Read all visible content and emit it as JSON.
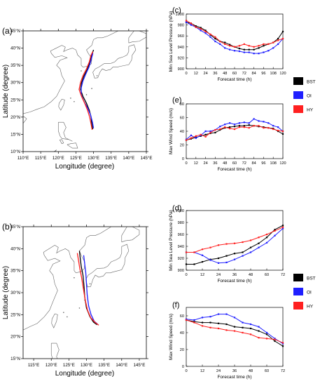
{
  "legend": {
    "items": [
      {
        "label": "BST",
        "color": "#000000"
      },
      {
        "label": "OI",
        "color": "#1f1fff"
      },
      {
        "label": "HY",
        "color": "#ff2020"
      }
    ]
  },
  "maps": [
    {
      "panel_label": "(a)",
      "xlabel": "Longitude (degree)",
      "ylabel": "Latitude (degree)",
      "x_ticks": [
        "110°E",
        "115°E",
        "120°E",
        "125°E",
        "130°E",
        "135°E",
        "140°E",
        "145°E"
      ],
      "y_ticks": [
        "10°N",
        "15°N",
        "20°N",
        "25°N",
        "30°N",
        "35°N",
        "40°N",
        "45°N"
      ],
      "xlim": [
        110,
        145
      ],
      "ylim": [
        10,
        45
      ],
      "tracks": {
        "BST": [
          [
            129.8,
            16.5
          ],
          [
            129.5,
            18
          ],
          [
            129.3,
            20
          ],
          [
            128.8,
            22
          ],
          [
            128.0,
            24
          ],
          [
            127.0,
            26
          ],
          [
            126.3,
            28
          ],
          [
            126.6,
            30
          ],
          [
            127.3,
            32
          ],
          [
            128.3,
            34
          ],
          [
            129.0,
            36
          ],
          [
            129.5,
            38
          ],
          [
            130.0,
            39.5
          ]
        ],
        "OI": [
          [
            130.0,
            16.8
          ],
          [
            129.7,
            18.5
          ],
          [
            129.2,
            20.5
          ],
          [
            128.4,
            22.5
          ],
          [
            127.3,
            24.5
          ],
          [
            126.5,
            26.5
          ],
          [
            126.5,
            28.5
          ],
          [
            127.0,
            30.5
          ],
          [
            127.8,
            32.5
          ],
          [
            128.7,
            34.5
          ],
          [
            129.3,
            36.5
          ],
          [
            129.8,
            38.5
          ]
        ],
        "HY": [
          [
            129.6,
            16.3
          ],
          [
            129.3,
            18
          ],
          [
            128.9,
            20
          ],
          [
            128.3,
            22
          ],
          [
            127.5,
            24
          ],
          [
            126.6,
            26
          ],
          [
            125.9,
            28
          ],
          [
            126.3,
            30
          ],
          [
            127.0,
            32
          ],
          [
            128.0,
            34
          ],
          [
            128.8,
            36
          ],
          [
            129.3,
            38
          ],
          [
            129.8,
            39
          ]
        ]
      }
    },
    {
      "panel_label": "(b)",
      "xlabel": "Longitude (degree)",
      "ylabel": "Latitude (degree)",
      "x_ticks": [
        "115°E",
        "120°E",
        "125°E",
        "130°E",
        "135°E",
        "140°E",
        "145°E"
      ],
      "y_ticks": [
        "15°N",
        "20°N",
        "25°N",
        "30°N",
        "35°N",
        "40°N",
        "45°N"
      ],
      "xlim": [
        112,
        147
      ],
      "ylim": [
        15,
        45
      ],
      "tracks": {
        "BST": [
          [
            133.0,
            22.7
          ],
          [
            132.0,
            23.3
          ],
          [
            131.0,
            24.5
          ],
          [
            130.0,
            26.5
          ],
          [
            129.5,
            29
          ],
          [
            129.3,
            31.5
          ],
          [
            129.0,
            34
          ],
          [
            128.5,
            36
          ],
          [
            128.2,
            38
          ],
          [
            128.0,
            39.5
          ]
        ],
        "OI": [
          [
            133.2,
            22.8
          ],
          [
            132.2,
            23.5
          ],
          [
            131.3,
            25
          ],
          [
            130.6,
            27
          ],
          [
            130.2,
            29.5
          ],
          [
            130.0,
            32
          ],
          [
            129.8,
            34.5
          ],
          [
            129.5,
            36.5
          ],
          [
            129.2,
            38.5
          ]
        ],
        "HY": [
          [
            133.5,
            22.6
          ],
          [
            132.5,
            23.2
          ],
          [
            131.2,
            24.3
          ],
          [
            130.3,
            26
          ],
          [
            129.6,
            28.5
          ],
          [
            129.1,
            31
          ],
          [
            128.6,
            33.5
          ],
          [
            128.1,
            35.5
          ],
          [
            127.7,
            37.5
          ],
          [
            127.4,
            39
          ]
        ]
      }
    }
  ],
  "chart_data": [
    {
      "type": "line",
      "panel_label": "(c)",
      "xlabel": "Forecast time (h)",
      "ylabel": "Min Sea Level Pressure (hPa)",
      "x": [
        0,
        6,
        12,
        18,
        24,
        30,
        36,
        42,
        48,
        54,
        60,
        66,
        72,
        78,
        84,
        90,
        96,
        102,
        108,
        114,
        120
      ],
      "x_ticks": [
        0,
        12,
        24,
        36,
        48,
        60,
        72,
        84,
        96,
        108,
        120
      ],
      "y_ticks": [
        900,
        920,
        940,
        960,
        980,
        1000
      ],
      "xlim": [
        0,
        120
      ],
      "ylim": [
        900,
        1000
      ],
      "series": [
        {
          "name": "BST",
          "values": [
            985,
            983,
            978,
            975,
            970,
            962,
            955,
            950,
            948,
            944,
            940,
            937,
            935,
            935,
            935,
            938,
            942,
            945,
            948,
            955,
            968
          ]
        },
        {
          "name": "OI",
          "values": [
            985,
            980,
            976,
            970,
            965,
            958,
            950,
            945,
            938,
            935,
            933,
            932,
            930,
            930,
            928,
            928,
            930,
            933,
            938,
            945,
            955
          ]
        },
        {
          "name": "HY",
          "values": [
            988,
            983,
            976,
            973,
            968,
            963,
            958,
            950,
            945,
            942,
            940,
            942,
            945,
            942,
            940,
            942,
            945,
            945,
            948,
            952,
            955
          ]
        }
      ]
    },
    {
      "type": "line",
      "panel_label": "(e)",
      "xlabel": "Forecast time (h)",
      "ylabel": "Max Wind Speed (m/s)",
      "x": [
        0,
        6,
        12,
        18,
        24,
        30,
        36,
        42,
        48,
        54,
        60,
        66,
        72,
        78,
        84,
        90,
        96,
        102,
        108,
        114,
        120
      ],
      "x_ticks": [
        0,
        12,
        24,
        36,
        48,
        60,
        72,
        84,
        96,
        108,
        120
      ],
      "y_ticks": [
        0,
        20,
        40,
        60,
        80
      ],
      "xlim": [
        0,
        120
      ],
      "ylim": [
        0,
        80
      ],
      "series": [
        {
          "name": "BST",
          "values": [
            27,
            29,
            31,
            33,
            35,
            37,
            38,
            42,
            45,
            46,
            47,
            48,
            48,
            49,
            48,
            47,
            46,
            45,
            44,
            40,
            36
          ]
        },
        {
          "name": "OI",
          "values": [
            28,
            34,
            30,
            34,
            40,
            40,
            42,
            47,
            50,
            52,
            50,
            52,
            53,
            52,
            58,
            55,
            54,
            52,
            48,
            46,
            40
          ]
        },
        {
          "name": "HY",
          "values": [
            27,
            30,
            33,
            35,
            32,
            38,
            42,
            43,
            46,
            44,
            43,
            46,
            46,
            45,
            48,
            48,
            45,
            45,
            43,
            41,
            40
          ]
        }
      ]
    },
    {
      "type": "line",
      "panel_label": "(d)",
      "xlabel": "Forecast time (h)",
      "ylabel": "Min Sea Level Pressure (hPa)",
      "x": [
        0,
        6,
        12,
        18,
        24,
        30,
        36,
        42,
        48,
        54,
        60,
        66,
        72
      ],
      "x_ticks": [
        0,
        12,
        24,
        36,
        48,
        60,
        72
      ],
      "y_ticks": [
        900,
        920,
        940,
        960,
        980,
        1000
      ],
      "xlim": [
        0,
        72
      ],
      "ylim": [
        900,
        1000
      ],
      "series": [
        {
          "name": "BST",
          "values": [
            910,
            910,
            914,
            918,
            920,
            924,
            928,
            930,
            938,
            945,
            955,
            968,
            975
          ]
        },
        {
          "name": "OI",
          "values": [
            930,
            930,
            925,
            917,
            912,
            913,
            918,
            924,
            930,
            938,
            946,
            958,
            970
          ]
        },
        {
          "name": "HY",
          "values": [
            930,
            930,
            935,
            938,
            942,
            944,
            945,
            947,
            950,
            955,
            960,
            966,
            972
          ]
        }
      ]
    },
    {
      "type": "line",
      "panel_label": "(f)",
      "xlabel": "Forecast time (h)",
      "ylabel": "Max Wind Speed (m/s)",
      "x": [
        0,
        6,
        12,
        18,
        24,
        30,
        36,
        42,
        48,
        54,
        60,
        66,
        72
      ],
      "x_ticks": [
        0,
        12,
        24,
        36,
        48,
        60,
        72
      ],
      "y_ticks": [
        0,
        20,
        40,
        60
      ],
      "xlim": [
        0,
        72
      ],
      "ylim": [
        0,
        70
      ],
      "series": [
        {
          "name": "BST",
          "values": [
            55,
            53,
            52,
            52,
            51,
            50,
            47,
            46,
            45,
            42,
            38,
            30,
            24
          ]
        },
        {
          "name": "OI",
          "values": [
            56,
            55,
            58,
            59,
            62,
            62,
            58,
            52,
            50,
            47,
            40,
            33,
            27
          ]
        },
        {
          "name": "HY",
          "values": [
            55,
            52,
            48,
            46,
            45,
            43,
            42,
            40,
            38,
            34,
            33,
            32,
            28
          ]
        }
      ]
    }
  ]
}
